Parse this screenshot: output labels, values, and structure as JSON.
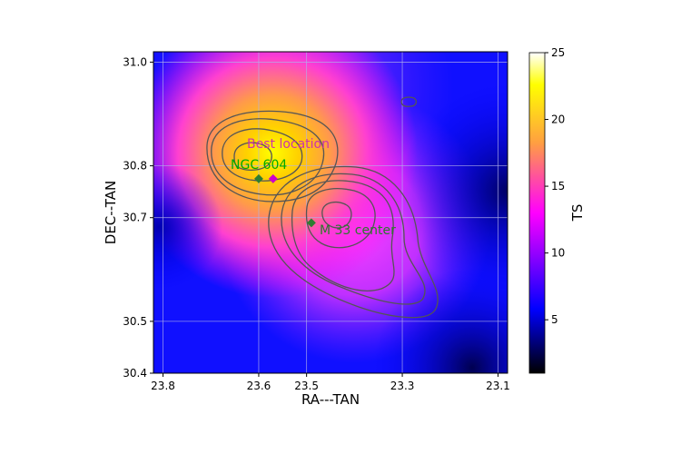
{
  "chart_data": {
    "type": "heatmap",
    "title": "",
    "xlabel": "RA---TAN",
    "ylabel": "DEC--TAN",
    "x_ticks": [
      "23.8",
      "23.6",
      "23.5",
      "23.3",
      "23.1"
    ],
    "x_tick_values": [
      23.8,
      23.6,
      23.5,
      23.3,
      23.1
    ],
    "y_ticks": [
      "30.4",
      "30.5",
      "30.7",
      "30.8",
      "31.0"
    ],
    "y_tick_values": [
      30.4,
      30.5,
      30.7,
      30.8,
      31.0
    ],
    "xlim": [
      23.82,
      23.08
    ],
    "ylim": [
      30.4,
      31.02
    ],
    "x_axis_inverted": true,
    "grid": true,
    "colorbar": {
      "label": "TS",
      "ticks": [
        "5",
        "10",
        "15",
        "20",
        "25"
      ],
      "tick_values": [
        5,
        10,
        15,
        20,
        25
      ],
      "range": [
        1,
        25
      ],
      "colormap": [
        "#000000",
        "#0000ff",
        "#ff00ff",
        "#ffa500",
        "#ffff00",
        "#ffffff"
      ]
    },
    "ts_peak": {
      "ra": 23.58,
      "dec": 30.78,
      "ts": 25
    },
    "markers": [
      {
        "label": "Best location",
        "ra": 23.57,
        "dec": 30.775,
        "color": "#cc00cc",
        "label_color": "#cc33aa"
      },
      {
        "label": "NGC 604",
        "ra": 23.6,
        "dec": 30.775,
        "color": "#2e7d32",
        "label_color": "#00aa00"
      },
      {
        "label": "M 33 center",
        "ra": 23.49,
        "dec": 30.69,
        "color": "#2e7d32",
        "label_color": "#2a7a2a"
      }
    ],
    "contour_color": "#555555"
  }
}
